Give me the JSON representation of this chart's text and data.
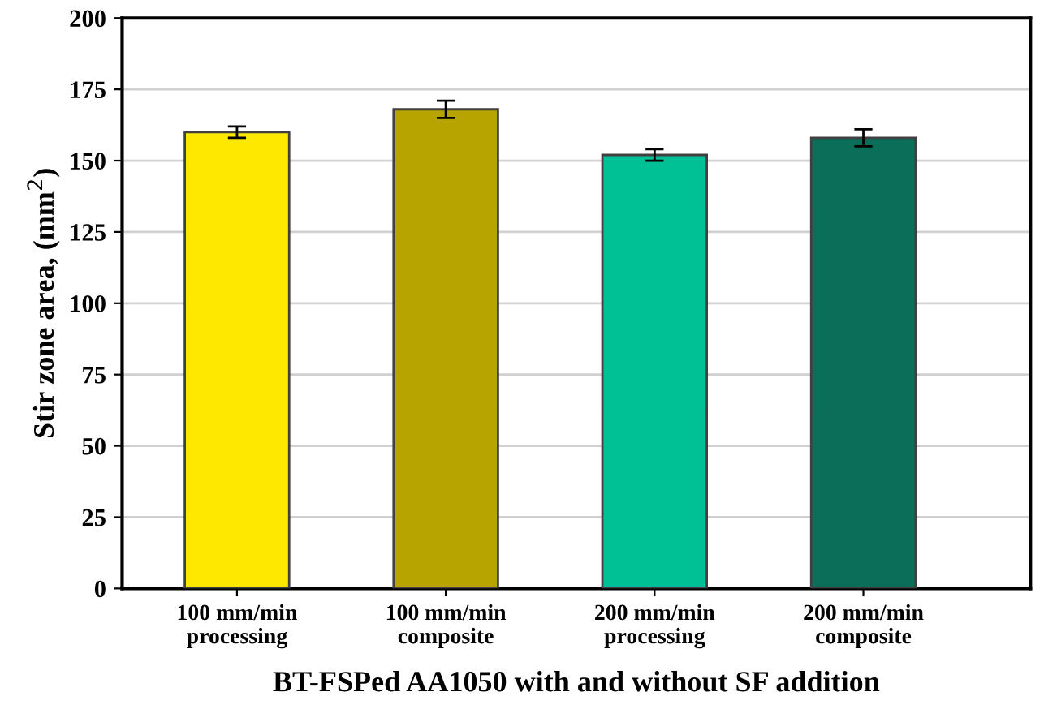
{
  "chart_data": {
    "type": "bar",
    "xlabel": "BT-FSPed AA1050 with and without SF addition",
    "ylabel": "Stir zone area, (mm$^{2}$)",
    "categories": [
      "100 mm/min\nprocessing",
      "100 mm/min\ncomposite",
      "200 mm/min\nprocessing",
      "200 mm/min\ncomposite"
    ],
    "values": [
      160,
      168,
      152,
      158
    ],
    "errors": [
      2,
      3,
      2,
      3
    ],
    "colors": [
      "#ffe800",
      "#b8a400",
      "#00c096",
      "#0b6e58"
    ],
    "ylim": [
      0,
      200
    ],
    "yticks": [
      0,
      25,
      50,
      75,
      100,
      125,
      150,
      175,
      200
    ],
    "grid": "y"
  }
}
